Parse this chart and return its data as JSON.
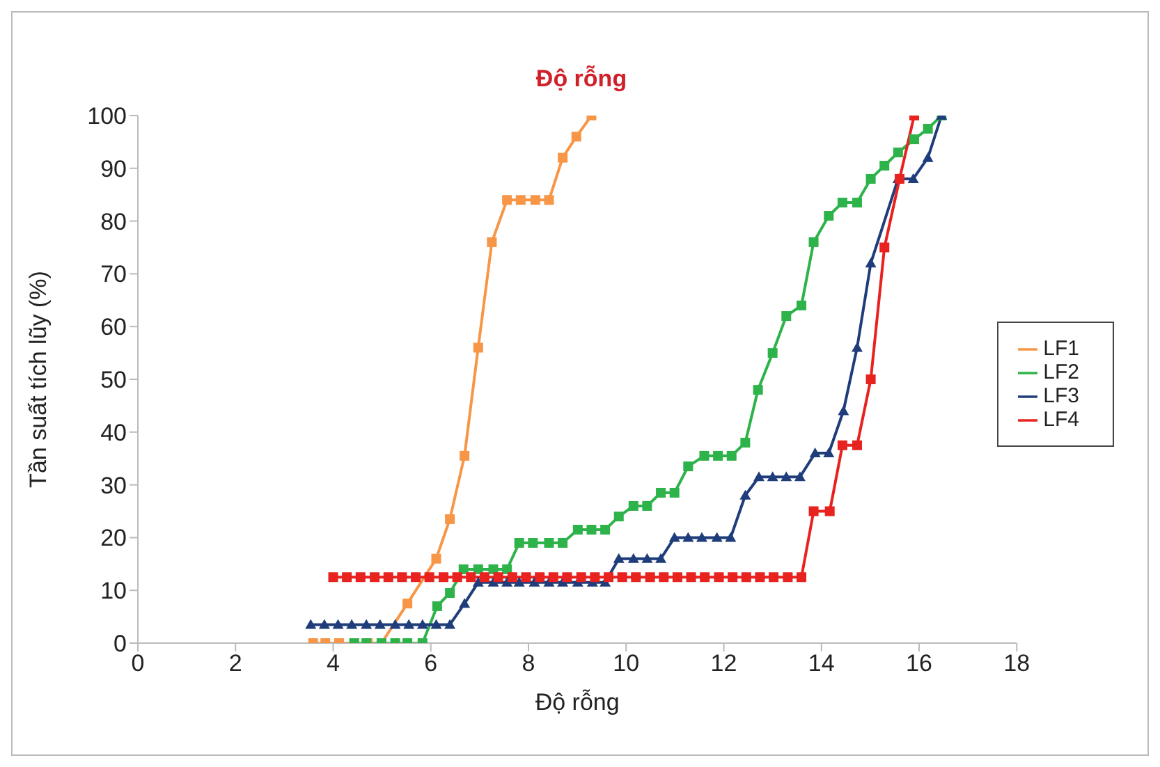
{
  "chart_data": {
    "type": "line",
    "title": "Độ rỗng",
    "xlabel": "Độ rỗng",
    "ylabel": "Tần suất tích lũy (%)",
    "xlim": [
      0,
      18
    ],
    "xticks": [
      0,
      2,
      4,
      6,
      8,
      10,
      12,
      14,
      16,
      18
    ],
    "ylim": [
      0,
      100
    ],
    "yticks": [
      0,
      10,
      20,
      30,
      40,
      50,
      60,
      70,
      80,
      90,
      100
    ],
    "grid": false,
    "legend": "right",
    "line_style": "solid",
    "series": [
      {
        "name": "LF1",
        "color": "#f79646",
        "marker": "square",
        "x": [
          3.59,
          3.84,
          4.12,
          4.43,
          4.71,
          4.99,
          5.52,
          6.11,
          6.39,
          6.69,
          6.97,
          7.25,
          7.56,
          7.84,
          8.14,
          8.42,
          8.7,
          8.98,
          9.29
        ],
        "values": [
          0,
          0,
          0,
          0,
          0,
          0,
          7.5,
          16,
          23.5,
          35.5,
          56,
          76,
          84,
          84,
          84,
          84,
          92,
          96,
          100
        ]
      },
      {
        "name": "LF2",
        "color": "#2db34a",
        "marker": "square",
        "x": [
          4.43,
          4.68,
          4.99,
          5.27,
          5.52,
          5.83,
          6.13,
          6.39,
          6.67,
          6.97,
          7.28,
          7.56,
          7.81,
          8.09,
          8.42,
          8.7,
          9.01,
          9.29,
          9.57,
          9.85,
          10.15,
          10.43,
          10.71,
          10.99,
          11.27,
          11.6,
          11.88,
          12.16,
          12.44,
          12.7,
          13,
          13.28,
          13.59,
          13.84,
          14.15,
          14.43,
          14.73,
          15.01,
          15.29,
          15.57,
          15.9,
          16.18,
          16.46
        ],
        "values": [
          0,
          0,
          0,
          0,
          0,
          0,
          7,
          9.5,
          14,
          14,
          14,
          14,
          19,
          19,
          19,
          19,
          21.5,
          21.5,
          21.5,
          24,
          26,
          26,
          28.5,
          28.5,
          33.5,
          35.5,
          35.5,
          35.5,
          38,
          48,
          55,
          62,
          64,
          76,
          81,
          83.5,
          83.5,
          88,
          90.5,
          93,
          95.5,
          97.5,
          100
        ]
      },
      {
        "name": "LF3",
        "color": "#1f3d7a",
        "marker": "triangle",
        "x": [
          3.54,
          3.82,
          4.1,
          4.38,
          4.68,
          4.96,
          5.27,
          5.55,
          5.83,
          6.11,
          6.39,
          6.69,
          6.97,
          7.28,
          7.56,
          7.81,
          8.12,
          8.42,
          8.7,
          9.01,
          9.31,
          9.57,
          9.85,
          10.15,
          10.43,
          10.71,
          10.99,
          11.27,
          11.55,
          11.86,
          12.14,
          12.44,
          12.72,
          13,
          13.28,
          13.56,
          13.87,
          14.15,
          14.45,
          14.73,
          15.01,
          15.57,
          15.88,
          16.18,
          16.46
        ],
        "values": [
          3.5,
          3.5,
          3.5,
          3.5,
          3.5,
          3.5,
          3.5,
          3.5,
          3.5,
          3.5,
          3.5,
          7.5,
          11.5,
          11.5,
          11.5,
          11.5,
          11.5,
          11.5,
          11.5,
          11.5,
          11.5,
          11.5,
          16,
          16,
          16,
          16,
          20,
          20,
          20,
          20,
          20,
          28,
          31.5,
          31.5,
          31.5,
          31.5,
          36,
          36,
          44,
          56,
          72,
          88,
          88,
          92,
          100
        ]
      },
      {
        "name": "LF4",
        "color": "#e8221f",
        "marker": "square",
        "x": [
          4,
          4.28,
          4.56,
          4.85,
          5.13,
          5.41,
          5.69,
          5.97,
          6.26,
          6.54,
          6.82,
          7.1,
          7.38,
          7.67,
          7.95,
          8.23,
          8.51,
          8.79,
          9.08,
          9.36,
          9.64,
          9.92,
          10.2,
          10.49,
          10.77,
          11.05,
          11.33,
          11.61,
          11.9,
          12.18,
          12.46,
          12.74,
          13.02,
          13.31,
          13.59,
          13.84,
          14.17,
          14.43,
          14.73,
          15.01,
          15.29,
          15.6,
          15.9
        ],
        "values": [
          12.5,
          12.5,
          12.5,
          12.5,
          12.5,
          12.5,
          12.5,
          12.5,
          12.5,
          12.5,
          12.5,
          12.5,
          12.5,
          12.5,
          12.5,
          12.5,
          12.5,
          12.5,
          12.5,
          12.5,
          12.5,
          12.5,
          12.5,
          12.5,
          12.5,
          12.5,
          12.5,
          12.5,
          12.5,
          12.5,
          12.5,
          12.5,
          12.5,
          12.5,
          12.5,
          25,
          25,
          37.5,
          37.5,
          50,
          75,
          88,
          100
        ]
      }
    ]
  }
}
